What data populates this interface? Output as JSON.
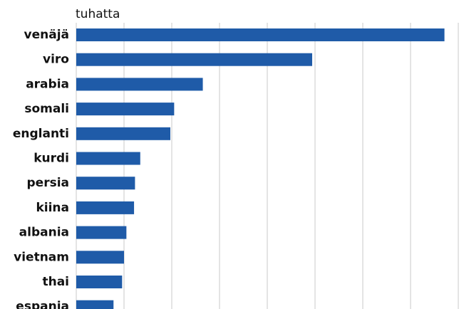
{
  "chart_data": {
    "type": "hbar",
    "unit_label": "tuhatta",
    "categories": [
      "venäjä",
      "viro",
      "arabia",
      "somali",
      "englanti",
      "kurdi",
      "persia",
      "kiina",
      "albania",
      "vietnam",
      "thai",
      "espanja"
    ],
    "values": [
      77.1,
      49.4,
      26.5,
      20.5,
      19.7,
      13.4,
      12.3,
      12.1,
      10.5,
      10.0,
      9.6,
      7.8
    ],
    "color": "#1f5ba8",
    "xlim": [
      0,
      80
    ],
    "xticks": [
      0,
      10,
      20,
      30,
      40,
      50,
      60,
      70,
      80
    ],
    "grid": true
  }
}
